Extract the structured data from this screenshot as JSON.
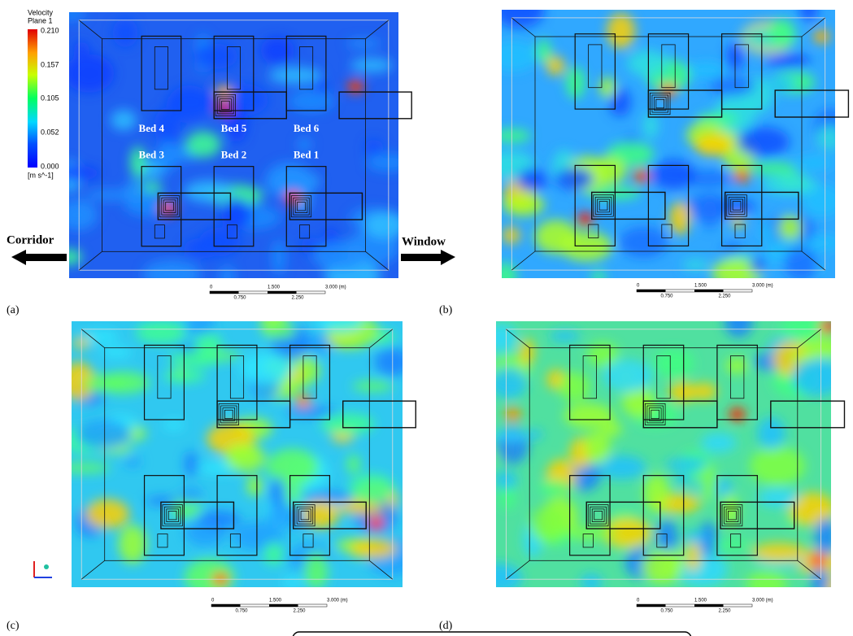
{
  "legend": {
    "title": [
      "Velocity",
      "Plane 1"
    ],
    "ticks": [
      "0.210",
      "0.157",
      "0.105",
      "0.052",
      "0.000"
    ],
    "unit": "[m s^-1]"
  },
  "beds": [
    "Bed 4",
    "Bed 5",
    "Bed 6",
    "Bed 3",
    "Bed 2",
    "Bed 1"
  ],
  "directions": {
    "left": "Corridor",
    "right": "Window"
  },
  "panels": [
    "(a)",
    "(b)",
    "(c)",
    "(d)"
  ],
  "scale_bar": {
    "top": [
      "0",
      "1.500",
      "3.000 (m)"
    ],
    "bottom": [
      "0.750",
      "2.250"
    ]
  }
}
